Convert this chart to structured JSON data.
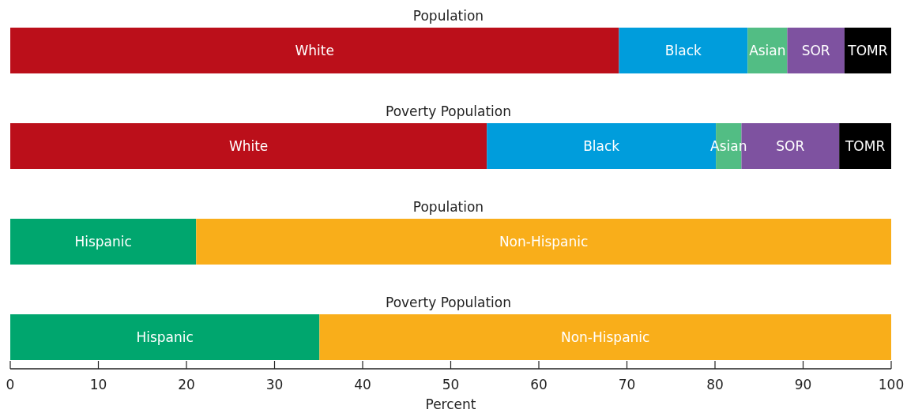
{
  "chart_data": {
    "type": "bar",
    "orientation": "horizontal",
    "stacked": true,
    "xlabel": "Percent",
    "categories": [
      "Population",
      "Poverty Population",
      "Population",
      "Poverty Population"
    ],
    "xlim": [
      0,
      100
    ],
    "xticks": [
      0,
      10,
      20,
      30,
      40,
      50,
      60,
      70,
      80,
      90,
      100
    ],
    "series": [
      {
        "name": "White",
        "color": "#bb0f1a",
        "values": [
          69.1,
          54.1,
          null,
          null
        ]
      },
      {
        "name": "Black",
        "color": "#009ddc",
        "values": [
          14.6,
          26,
          null,
          null
        ]
      },
      {
        "name": "Asian",
        "color": "#52bd84",
        "values": [
          4.5,
          2.9,
          null,
          null
        ]
      },
      {
        "name": "SOR",
        "color": "#7e52a0",
        "values": [
          6.5,
          11.1,
          null,
          null
        ]
      },
      {
        "name": "TOMR",
        "color": "#000000",
        "values": [
          5.3,
          5.9,
          null,
          null
        ]
      },
      {
        "name": "Hispanic",
        "color": "#00a66e",
        "values": [
          null,
          null,
          21.1,
          35.1
        ]
      },
      {
        "name": "Non-Hispanic",
        "color": "#f9ae1a",
        "values": [
          null,
          null,
          78.9,
          64.9
        ]
      }
    ]
  }
}
